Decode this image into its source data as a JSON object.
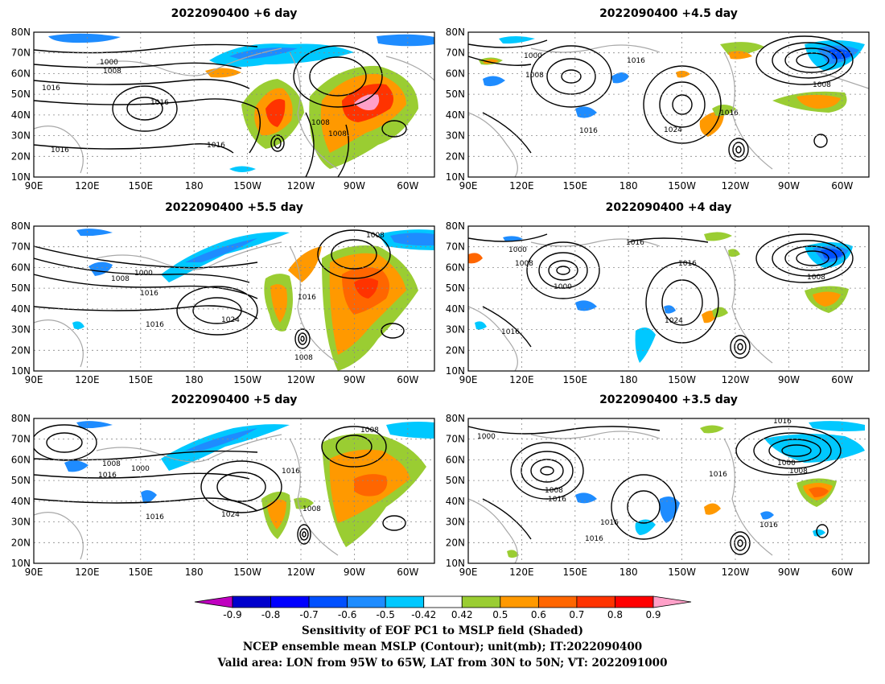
{
  "panels": [
    {
      "title": "2022090400 +6 day"
    },
    {
      "title": "2022090400 +4.5 day"
    },
    {
      "title": "2022090400 +5.5 day"
    },
    {
      "title": "2022090400 +4 day"
    },
    {
      "title": "2022090400 +5 day"
    },
    {
      "title": "2022090400 +3.5 day"
    }
  ],
  "axes": {
    "lat_ticks": [
      "10N",
      "20N",
      "30N",
      "40N",
      "50N",
      "60N",
      "70N",
      "80N"
    ],
    "lon_ticks": [
      "90E",
      "120E",
      "150E",
      "180",
      "150W",
      "120W",
      "90W",
      "60W"
    ]
  },
  "colorbar": {
    "ticks": [
      "-0.9",
      "-0.8",
      "-0.7",
      "-0.6",
      "-0.5",
      "-0.42",
      "0.42",
      "0.5",
      "0.6",
      "0.7",
      "0.8",
      "0.9"
    ],
    "colors": [
      "#c000c0",
      "#0000cc",
      "#0000ff",
      "#0050ff",
      "#1e8cff",
      "#00c8ff",
      "#ffffff",
      "#9acd32",
      "#ff9900",
      "#ff6600",
      "#ff3300",
      "#ff0000",
      "#ffa0c8"
    ]
  },
  "captions": {
    "line1": "Sensitivity of EOF PC1 to MSLP field (Shaded)",
    "line2": "NCEP ensemble mean MSLP (Contour); unit(mb); IT:2022090400",
    "line3": "Valid area: LON from 95W to 65W, LAT from 30N to 50N; VT: 2022091000"
  }
}
